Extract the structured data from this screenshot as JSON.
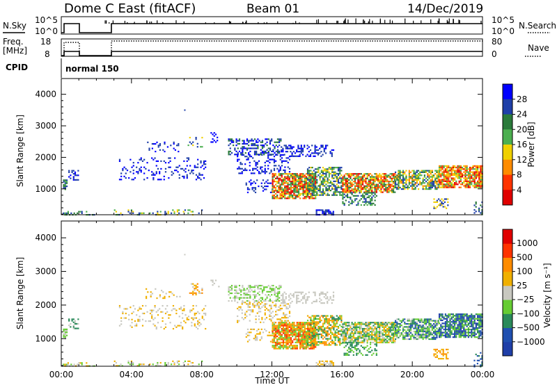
{
  "header": {
    "station": "Dome C East (fitACF)",
    "beam": "Beam 01",
    "date": "14/Dec/2019"
  },
  "panels": {
    "nsky": {
      "label": "N.Sky",
      "tick_top": "10^5",
      "tick_bottom": "10^0",
      "right_label": "N.Search",
      "right_tick_top": "10^5",
      "right_tick_bottom": "10^0"
    },
    "freq": {
      "label_line1": "Freq.",
      "label_line2": "[MHz]",
      "tick_top": "18",
      "tick_bottom": "8",
      "right_label": "Nave",
      "right_tick_top": "80",
      "right_tick_bottom": "0"
    },
    "cpid": {
      "label": "CPID",
      "value": "normal 150"
    }
  },
  "colors": {
    "power": [
      "#0000ff",
      "#1f3fa8",
      "#2a7a3a",
      "#4caf50",
      "#f0d000",
      "#ff8c00",
      "#ff3300",
      "#e00000"
    ],
    "velocity": [
      "#e00000",
      "#ff3300",
      "#ff8c00",
      "#f0b000",
      "#c8c8c0",
      "#66cc33",
      "#2a8a5a",
      "#2050b0",
      "#1f3fa8"
    ]
  },
  "chart_data": [
    {
      "type": "heatmap",
      "name": "power",
      "ylabel": "Slant Range [km]",
      "xlim": [
        "00:00",
        "00:00"
      ],
      "ylim": [
        180,
        4500
      ],
      "yticks": [
        "1000",
        "2000",
        "3000",
        "4000"
      ],
      "colorbar": {
        "label": "Power [dB]",
        "ticks": [
          "4",
          "8",
          "12",
          "16",
          "20",
          "24",
          "28"
        ]
      }
    },
    {
      "type": "heatmap",
      "name": "velocity",
      "ylabel": "Slant Range [km]",
      "xlabel": "Time UT",
      "xlim": [
        "00:00",
        "00:00"
      ],
      "ylim": [
        180,
        4500
      ],
      "xticks": [
        "00:00",
        "04:00",
        "08:00",
        "12:00",
        "16:00",
        "20:00",
        "00:00"
      ],
      "yticks": [
        "1000",
        "2000",
        "3000",
        "4000"
      ],
      "colorbar": {
        "label": "Velocity [m s⁻¹]",
        "ticks": [
          "1000",
          "500",
          "100",
          "25",
          "−25",
          "−100",
          "−500",
          "−1000"
        ]
      }
    }
  ]
}
